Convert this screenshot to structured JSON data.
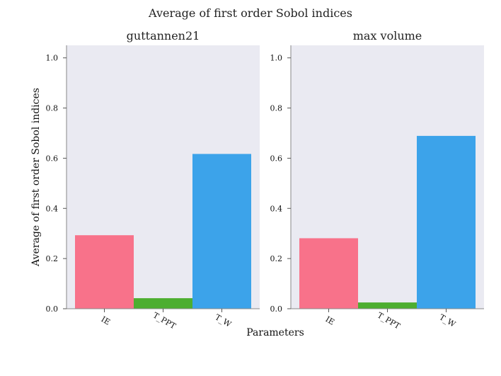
{
  "figure": {
    "suptitle": "Average of first order Sobol indices",
    "xlabel": "Parameters",
    "ylabel": "Average of first order Sobol indices"
  },
  "chart_data": [
    {
      "type": "bar",
      "title": "guttannen21",
      "categories": [
        "IE",
        "T_PPT",
        "T_W"
      ],
      "values": [
        0.293,
        0.042,
        0.617
      ],
      "colors": [
        "#f8728a",
        "#4dae30",
        "#3ca3ea"
      ],
      "ylim": [
        0,
        1.05
      ],
      "yticks": [
        "0.0",
        "0.2",
        "0.4",
        "0.6",
        "0.8",
        "1.0"
      ],
      "grid": false
    },
    {
      "type": "bar",
      "title": "max volume",
      "categories": [
        "IE",
        "T_PPT",
        "T_W"
      ],
      "values": [
        0.281,
        0.025,
        0.689
      ],
      "colors": [
        "#f8728a",
        "#4dae30",
        "#3ca3ea"
      ],
      "ylim": [
        0,
        1.05
      ],
      "yticks": [
        "0.0",
        "0.2",
        "0.4",
        "0.6",
        "0.8",
        "1.0"
      ],
      "grid": false
    }
  ]
}
